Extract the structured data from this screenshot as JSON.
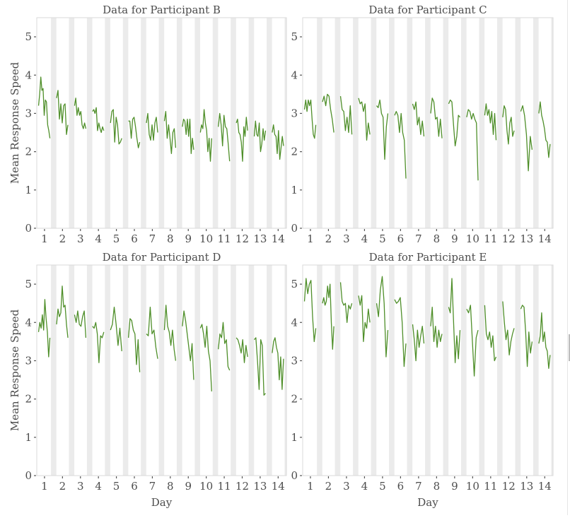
{
  "figure": {
    "line_color": "#4f8f2a",
    "band_color": "#ebebeb",
    "panel_border_color": "#d9d9d9",
    "text_color": "#4d4d4d",
    "shared_ylabel": "Mean Response Speed",
    "shared_xlabel": "Day"
  },
  "chart_data": [
    {
      "type": "line",
      "title": "Data for Participant B",
      "xlabel": "",
      "ylabel": "Mean Response Speed",
      "xlim": [
        0.57,
        14.46
      ],
      "ylim": [
        0,
        5.5
      ],
      "xticks": [
        1,
        2,
        3,
        4,
        5,
        6,
        7,
        8,
        9,
        10,
        11,
        12,
        13,
        14
      ],
      "yticks": [
        0,
        1,
        2,
        3,
        4,
        5
      ],
      "night_bands": true,
      "series": [
        {
          "day": 1,
          "values": [
            3.2,
            3.5,
            3.95,
            3.6,
            3.65,
            2.95,
            3.35,
            3.3,
            2.7,
            2.55,
            2.35
          ]
        },
        {
          "day": 2,
          "values": [
            3.4,
            3.6,
            2.85,
            3.25,
            2.75,
            3.2,
            3.25,
            2.45,
            2.7
          ]
        },
        {
          "day": 3,
          "values": [
            3.2,
            3.4,
            2.95,
            3.15,
            2.95,
            3.05,
            2.7,
            2.6,
            2.75,
            2.6
          ]
        },
        {
          "day": 4,
          "values": [
            3.05,
            3.1,
            3.0,
            3.15,
            2.55,
            2.75,
            2.6,
            2.5,
            2.65,
            2.55
          ]
        },
        {
          "day": 5,
          "values": [
            2.75,
            3.05,
            3.1,
            2.25,
            2.9,
            2.7,
            2.2,
            2.25,
            2.35
          ]
        },
        {
          "day": 6,
          "values": [
            2.8,
            2.8,
            2.35,
            2.85,
            2.9,
            2.65,
            2.35,
            2.1,
            2.25
          ]
        },
        {
          "day": 7,
          "values": [
            2.75,
            3.0,
            2.45,
            2.3,
            2.7,
            2.3,
            2.75,
            2.9,
            2.5
          ]
        },
        {
          "day": 8,
          "values": [
            2.8,
            3.05,
            2.35,
            2.7,
            2.35,
            1.95,
            2.5,
            2.6,
            2.1
          ]
        },
        {
          "day": 9,
          "values": [
            2.65,
            2.85,
            2.8,
            2.45,
            2.85,
            2.4,
            2.85,
            1.95,
            2.35,
            2.05
          ]
        },
        {
          "day": 10,
          "values": [
            2.5,
            2.7,
            2.6,
            3.1,
            2.75,
            2.55,
            2.0,
            2.35,
            1.75,
            2.35
          ]
        },
        {
          "day": 11,
          "values": [
            2.65,
            3.0,
            2.7,
            2.15,
            2.95,
            2.65,
            2.6,
            2.2,
            1.75
          ]
        },
        {
          "day": 12,
          "values": [
            2.75,
            2.85,
            2.5,
            2.45,
            2.25,
            1.75,
            2.65,
            2.4,
            2.9,
            2.55
          ]
        },
        {
          "day": 13,
          "values": [
            2.4,
            2.8,
            2.45,
            2.4,
            2.75,
            2.0,
            2.2,
            2.6,
            2.3,
            2.55
          ]
        },
        {
          "day": 14,
          "values": [
            2.5,
            2.7,
            2.45,
            2.4,
            1.95,
            2.55,
            1.8,
            2.1,
            2.4,
            2.15
          ]
        }
      ]
    },
    {
      "type": "line",
      "title": "Data for Participant C",
      "xlabel": "",
      "ylabel": "",
      "xlim": [
        0.57,
        14.46
      ],
      "ylim": [
        0,
        5.5
      ],
      "xticks": [
        1,
        2,
        3,
        4,
        5,
        6,
        7,
        8,
        9,
        10,
        11,
        12,
        13,
        14
      ],
      "yticks": [
        0,
        1,
        2,
        3,
        4,
        5
      ],
      "night_bands": true,
      "series": [
        {
          "day": 1,
          "values": [
            3.1,
            3.35,
            3.05,
            3.35,
            3.2,
            3.35,
            2.85,
            2.45,
            2.35,
            2.7
          ]
        },
        {
          "day": 2,
          "values": [
            3.3,
            3.45,
            3.2,
            3.5,
            3.45,
            3.1,
            2.85,
            2.5
          ]
        },
        {
          "day": 3,
          "values": [
            3.45,
            3.1,
            3.05,
            2.55,
            2.9,
            2.5,
            3.2,
            2.45
          ]
        },
        {
          "day": 4,
          "values": [
            3.4,
            3.25,
            3.3,
            3.05,
            3.25,
            2.3,
            2.75,
            2.45
          ]
        },
        {
          "day": 5,
          "values": [
            3.2,
            3.15,
            3.35,
            3.0,
            2.9,
            1.8,
            2.65,
            3.0
          ]
        },
        {
          "day": 6,
          "values": [
            2.95,
            3.05,
            2.95,
            2.5,
            3.0,
            2.5,
            2.3,
            1.3
          ]
        },
        {
          "day": 7,
          "values": [
            3.25,
            3.1,
            3.3,
            2.7,
            2.9,
            2.45,
            2.8,
            2.4
          ]
        },
        {
          "day": 8,
          "values": [
            3.0,
            3.4,
            3.3,
            2.85,
            2.9,
            2.4,
            2.85,
            2.35
          ]
        },
        {
          "day": 9,
          "values": [
            3.25,
            3.35,
            3.3,
            2.7,
            2.15,
            2.4,
            2.95,
            2.9
          ]
        },
        {
          "day": 10,
          "values": [
            2.9,
            3.1,
            3.05,
            2.85,
            3.0,
            2.85,
            2.75,
            1.25
          ]
        },
        {
          "day": 11,
          "values": [
            2.95,
            3.25,
            2.95,
            3.1,
            2.75,
            3.05,
            2.45,
            3.0,
            2.3
          ]
        },
        {
          "day": 12,
          "values": [
            2.9,
            3.2,
            3.1,
            2.55,
            2.2,
            2.75,
            2.9,
            2.4,
            2.55
          ]
        },
        {
          "day": 13,
          "values": [
            3.05,
            3.2,
            2.95,
            2.45,
            1.5,
            2.4,
            2.05
          ]
        },
        {
          "day": 14,
          "values": [
            3.0,
            3.3,
            2.95,
            2.8,
            2.6,
            2.3,
            2.25,
            1.85,
            2.2
          ]
        }
      ]
    },
    {
      "type": "line",
      "title": "Data for Participant D",
      "xlabel": "Day",
      "ylabel": "Mean Response Speed",
      "xlim": [
        0.57,
        14.46
      ],
      "ylim": [
        0,
        5.5
      ],
      "xticks": [
        1,
        2,
        3,
        4,
        5,
        6,
        7,
        8,
        9,
        10,
        11,
        12,
        13,
        14
      ],
      "yticks": [
        0,
        1,
        2,
        3,
        4,
        5
      ],
      "night_bands": true,
      "series": [
        {
          "day": 1,
          "values": [
            3.75,
            4.0,
            3.85,
            4.2,
            3.8,
            4.6,
            4.1,
            3.75,
            3.1,
            3.6
          ]
        },
        {
          "day": 2,
          "values": [
            3.95,
            4.35,
            4.15,
            4.25,
            4.95,
            4.4,
            4.45,
            3.95,
            3.6
          ]
        },
        {
          "day": 3,
          "values": [
            4.2,
            4.0,
            4.3,
            3.95,
            3.9,
            4.15,
            4.3,
            3.6
          ]
        },
        {
          "day": 4,
          "values": [
            3.9,
            3.85,
            4.0,
            3.7,
            2.95,
            3.65,
            3.6,
            3.75
          ]
        },
        {
          "day": 5,
          "values": [
            3.8,
            3.95,
            4.4,
            3.95,
            3.4,
            3.85,
            3.25
          ]
        },
        {
          "day": 6,
          "values": [
            3.6,
            4.1,
            4.05,
            3.8,
            3.7,
            2.9,
            3.55,
            2.7
          ]
        },
        {
          "day": 7,
          "values": [
            3.7,
            3.65,
            4.4,
            3.7,
            3.8,
            3.35,
            3.05
          ]
        },
        {
          "day": 8,
          "values": [
            3.8,
            4.45,
            3.9,
            3.75,
            3.4,
            3.8,
            3.3,
            3.0
          ]
        },
        {
          "day": 9,
          "values": [
            3.9,
            4.3,
            4.05,
            3.7,
            3.35,
            3.0,
            3.45,
            2.5
          ]
        },
        {
          "day": 10,
          "values": [
            3.85,
            3.95,
            3.7,
            3.35,
            3.9,
            3.25,
            3.0,
            2.2
          ]
        },
        {
          "day": 11,
          "values": [
            3.3,
            3.7,
            3.6,
            4.0,
            3.45,
            3.55,
            2.85,
            2.75
          ]
        },
        {
          "day": 12,
          "values": [
            3.6,
            3.55,
            3.4,
            3.2,
            3.55,
            2.95,
            3.4,
            3.1
          ]
        },
        {
          "day": 13,
          "values": [
            3.55,
            3.6,
            3.0,
            2.25,
            3.55,
            3.4,
            2.1,
            2.15
          ]
        },
        {
          "day": 14,
          "values": [
            3.2,
            3.5,
            3.6,
            3.35,
            3.2,
            2.5,
            3.1,
            2.25,
            3.05
          ]
        }
      ]
    },
    {
      "type": "line",
      "title": "Data for Participant E",
      "xlabel": "Day",
      "ylabel": "",
      "xlim": [
        0.57,
        14.46
      ],
      "ylim": [
        0,
        5.5
      ],
      "xticks": [
        1,
        2,
        3,
        4,
        5,
        6,
        7,
        8,
        9,
        10,
        11,
        12,
        13,
        14
      ],
      "yticks": [
        0,
        1,
        2,
        3,
        4,
        5
      ],
      "night_bands": true,
      "series": [
        {
          "day": 1,
          "values": [
            4.55,
            5.15,
            4.75,
            5.0,
            5.1,
            4.15,
            3.5,
            3.85
          ]
        },
        {
          "day": 2,
          "values": [
            4.5,
            4.65,
            4.45,
            4.55,
            4.95,
            4.65,
            5.0,
            4.0,
            3.3,
            3.9
          ]
        },
        {
          "day": 3,
          "values": [
            5.05,
            4.55,
            4.45,
            4.5,
            4.0,
            4.45,
            4.35,
            4.5
          ]
        },
        {
          "day": 4,
          "values": [
            4.7,
            4.45,
            4.7,
            3.5,
            4.0,
            3.85,
            4.35,
            4.0
          ]
        },
        {
          "day": 5,
          "values": [
            4.5,
            4.15,
            4.85,
            5.2,
            4.5,
            3.1,
            3.8
          ]
        },
        {
          "day": 6,
          "values": [
            4.6,
            4.5,
            4.55,
            4.65,
            4.0,
            2.85,
            3.45
          ]
        },
        {
          "day": 7,
          "values": [
            3.95,
            3.55,
            3.0,
            3.8,
            3.35,
            3.65,
            3.9,
            3.45
          ]
        },
        {
          "day": 8,
          "values": [
            3.9,
            4.4,
            3.5,
            3.9,
            3.35,
            3.8,
            3.5,
            3.7
          ]
        },
        {
          "day": 9,
          "values": [
            4.4,
            4.25,
            5.15,
            4.05,
            2.95,
            3.65,
            3.05,
            3.8
          ]
        },
        {
          "day": 10,
          "values": [
            4.35,
            4.25,
            4.45,
            3.5,
            2.6,
            3.6,
            3.8
          ]
        },
        {
          "day": 11,
          "values": [
            4.45,
            3.7,
            3.55,
            3.75,
            3.35,
            3.65,
            3.0,
            3.1
          ]
        },
        {
          "day": 12,
          "values": [
            4.55,
            4.0,
            3.55,
            3.8,
            3.15,
            3.5,
            3.7,
            3.85
          ]
        },
        {
          "day": 13,
          "values": [
            4.35,
            4.45,
            4.4,
            3.75,
            2.85,
            3.75,
            3.2,
            3.5
          ]
        },
        {
          "day": 14,
          "values": [
            3.45,
            3.65,
            4.25,
            3.5,
            3.75,
            3.35,
            3.25,
            2.8,
            3.15
          ]
        }
      ]
    }
  ]
}
